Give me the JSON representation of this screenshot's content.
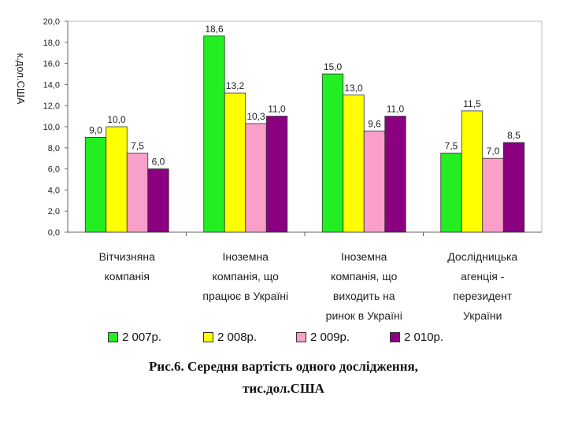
{
  "chart_data": {
    "type": "bar",
    "ylabel": "к.дол.США",
    "ylim": [
      0,
      20
    ],
    "yticks": [
      "0,0",
      "2,0",
      "4,0",
      "6,0",
      "8,0",
      "10,0",
      "12,0",
      "14,0",
      "16,0",
      "18,0",
      "20,0"
    ],
    "categories": [
      [
        "Вітчизняна",
        "компанія"
      ],
      [
        "Іноземна",
        "компанія, що",
        "працює в Україні"
      ],
      [
        "Іноземна",
        "компанія, що",
        "виходить на",
        "ринок в Україні"
      ],
      [
        "Дослідницька",
        "агенція -",
        "перезидент",
        "України"
      ]
    ],
    "series": [
      {
        "name": "2 007р.",
        "color": "#22ee22",
        "values": [
          9.0,
          18.6,
          15.0,
          7.5
        ],
        "labels": [
          "9,0",
          "18,6",
          "15,0",
          "7,5"
        ]
      },
      {
        "name": "2 008р.",
        "color": "#ffff00",
        "values": [
          10.0,
          13.2,
          13.0,
          11.5
        ],
        "labels": [
          "10,0",
          "13,2",
          "13,0",
          "11,5"
        ]
      },
      {
        "name": "2 009р.",
        "color": "#f99fc9",
        "values": [
          7.5,
          10.3,
          9.6,
          7.0
        ],
        "labels": [
          "7,5",
          "10,3",
          "9,6",
          "7,0"
        ]
      },
      {
        "name": "2 010р.",
        "color": "#8b0080",
        "values": [
          6.0,
          11.0,
          11.0,
          8.5
        ],
        "labels": [
          "6,0",
          "11,0",
          "11,0",
          "8,5"
        ]
      }
    ]
  },
  "caption": {
    "line1": "Рис.6. Середня вартість одного дослідження,",
    "line2": "тис.дол.США"
  }
}
